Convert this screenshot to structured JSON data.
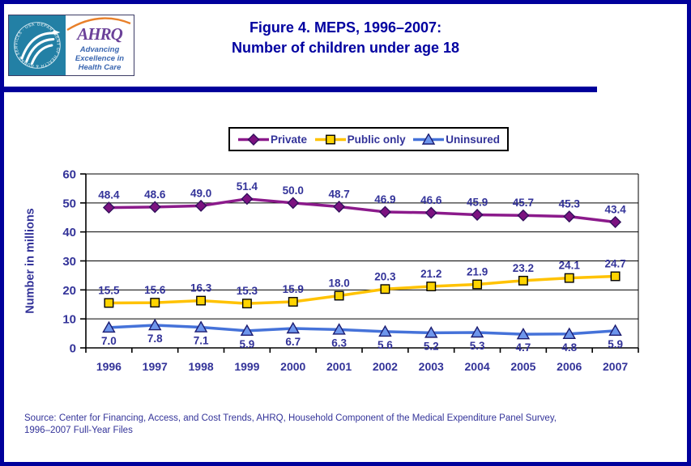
{
  "header": {
    "logo": {
      "seal_text": "DEPARTMENT OF HEALTH & HUMAN SERVICES · USA",
      "org_abbr": "AHRQ",
      "tagline_line1": "Advancing",
      "tagline_line2": "Excellence in",
      "tagline_line3": "Health Care"
    },
    "title_line1": "Figure 4. MEPS, 1996–2007:",
    "title_line2": "Number of children under age 18"
  },
  "chart_data": {
    "type": "line",
    "title": "Figure 4. MEPS, 1996–2007: Number of children under age 18",
    "categories": [
      "1996",
      "1997",
      "1998",
      "1999",
      "2000",
      "2001",
      "2002",
      "2003",
      "2004",
      "2005",
      "2006",
      "2007"
    ],
    "series": [
      {
        "name": "Private",
        "marker": "diamond",
        "color": "#8B1A8B",
        "marker_fill": "#7C1280",
        "marker_stroke": "#33105C",
        "label_position": "above",
        "values": [
          48.4,
          48.6,
          49.0,
          51.4,
          50.0,
          48.7,
          46.9,
          46.6,
          45.9,
          45.7,
          45.3,
          43.4
        ]
      },
      {
        "name": "Public only",
        "marker": "square",
        "color": "#FFC200",
        "marker_fill": "#FFD400",
        "marker_stroke": "#000000",
        "label_position": "above",
        "values": [
          15.5,
          15.6,
          16.3,
          15.3,
          15.9,
          18.0,
          20.3,
          21.2,
          21.9,
          23.2,
          24.1,
          24.7
        ]
      },
      {
        "name": "Uninsured",
        "marker": "triangle",
        "color": "#4572D9",
        "marker_fill": "#6E96EC",
        "marker_stroke": "#1B1B70",
        "label_position": "below",
        "values": [
          7.0,
          7.8,
          7.1,
          5.9,
          6.7,
          6.3,
          5.6,
          5.2,
          5.3,
          4.7,
          4.8,
          5.9
        ]
      }
    ],
    "xlabel": "",
    "ylabel": "Number in millions",
    "ylim": [
      0,
      60
    ],
    "ytick_step": 10,
    "grid": true,
    "legend_position": "top"
  },
  "footer": {
    "source_line1": "Source: Center for Financing, Access, and Cost Trends, AHRQ, Household Component of the Medical Expenditure Panel Survey,",
    "source_line2": "1996–2007 Full-Year Files"
  },
  "colors": {
    "frame_navy": "#00009B",
    "title_navy": "#0000A0",
    "label_blue": "#333399",
    "axis_black": "#000000"
  }
}
